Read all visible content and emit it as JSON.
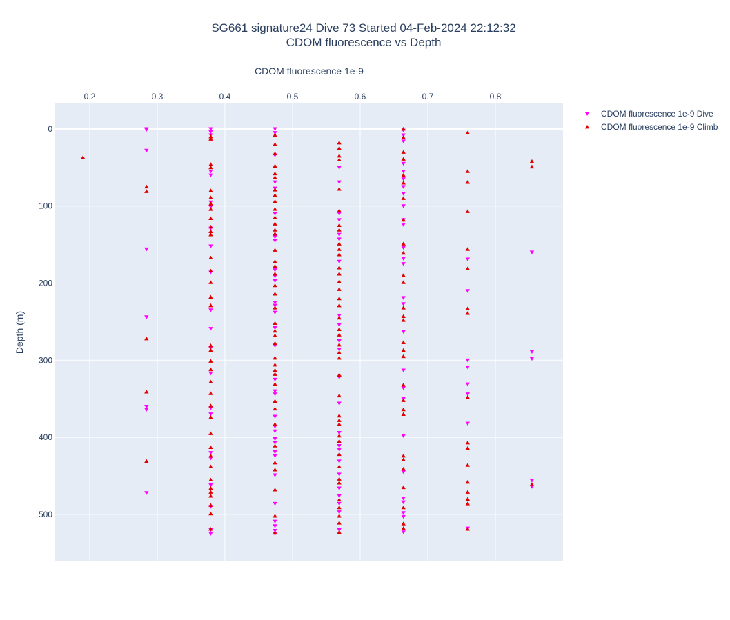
{
  "chart_data": {
    "type": "scatter",
    "title_line1": "SG661 signature24 Dive 73 Started 04-Feb-2024 22:12:32",
    "title_line2": "CDOM fluorescence vs Depth",
    "xlabel": "CDOM fluorescence 1e-9",
    "ylabel": "Depth (m)",
    "x_axis_position": "top",
    "y_reversed": true,
    "xlim": [
      0.149,
      0.9
    ],
    "ylim": [
      -33,
      560
    ],
    "xticks": [
      {
        "value": 0.2,
        "label": "0.2"
      },
      {
        "value": 0.3,
        "label": "0.3"
      },
      {
        "value": 0.4,
        "label": "0.4"
      },
      {
        "value": 0.5,
        "label": "0.5"
      },
      {
        "value": 0.6,
        "label": "0.6"
      },
      {
        "value": 0.7,
        "label": "0.7"
      },
      {
        "value": 0.8,
        "label": "0.8"
      }
    ],
    "yticks": [
      {
        "value": 0,
        "label": "0"
      },
      {
        "value": 100,
        "label": "100"
      },
      {
        "value": 200,
        "label": "200"
      },
      {
        "value": 300,
        "label": "300"
      },
      {
        "value": 400,
        "label": "400"
      },
      {
        "value": 500,
        "label": "500"
      }
    ],
    "grid": true,
    "legend_position": "top-right",
    "background": "#e5ecf6",
    "series": [
      {
        "name": "CDOM fluorescence 1e-9 Dive",
        "marker": "triangle-down",
        "color": "#ff00ff",
        "points": [
          [
            0.284,
            0
          ],
          [
            0.284,
            1
          ],
          [
            0.284,
            28
          ],
          [
            0.284,
            156
          ],
          [
            0.284,
            244
          ],
          [
            0.284,
            360
          ],
          [
            0.284,
            364
          ],
          [
            0.284,
            472
          ],
          [
            0.379,
            0
          ],
          [
            0.379,
            4
          ],
          [
            0.379,
            8
          ],
          [
            0.379,
            55
          ],
          [
            0.379,
            60
          ],
          [
            0.379,
            95
          ],
          [
            0.379,
            101
          ],
          [
            0.379,
            129
          ],
          [
            0.379,
            152
          ],
          [
            0.379,
            186
          ],
          [
            0.379,
            235
          ],
          [
            0.379,
            259
          ],
          [
            0.379,
            284
          ],
          [
            0.379,
            317
          ],
          [
            0.379,
            362
          ],
          [
            0.379,
            370
          ],
          [
            0.379,
            420
          ],
          [
            0.379,
            427
          ],
          [
            0.379,
            462
          ],
          [
            0.379,
            490
          ],
          [
            0.379,
            520
          ],
          [
            0.379,
            525
          ],
          [
            0.474,
            0
          ],
          [
            0.474,
            5
          ],
          [
            0.474,
            34
          ],
          [
            0.474,
            69
          ],
          [
            0.474,
            77
          ],
          [
            0.474,
            110
          ],
          [
            0.474,
            140
          ],
          [
            0.474,
            145
          ],
          [
            0.474,
            183
          ],
          [
            0.474,
            191
          ],
          [
            0.474,
            197
          ],
          [
            0.474,
            225
          ],
          [
            0.474,
            229
          ],
          [
            0.474,
            238
          ],
          [
            0.474,
            258
          ],
          [
            0.474,
            281
          ],
          [
            0.474,
            325
          ],
          [
            0.474,
            340
          ],
          [
            0.474,
            344
          ],
          [
            0.474,
            373
          ],
          [
            0.474,
            386
          ],
          [
            0.474,
            392
          ],
          [
            0.474,
            402
          ],
          [
            0.474,
            407
          ],
          [
            0.474,
            419
          ],
          [
            0.474,
            424
          ],
          [
            0.474,
            449
          ],
          [
            0.474,
            486
          ],
          [
            0.474,
            509
          ],
          [
            0.474,
            515
          ],
          [
            0.474,
            521
          ],
          [
            0.474,
            525
          ],
          [
            0.569,
            50
          ],
          [
            0.569,
            69
          ],
          [
            0.569,
            110
          ],
          [
            0.569,
            118
          ],
          [
            0.569,
            137
          ],
          [
            0.569,
            143
          ],
          [
            0.569,
            172
          ],
          [
            0.569,
            242
          ],
          [
            0.569,
            254
          ],
          [
            0.569,
            275
          ],
          [
            0.569,
            286
          ],
          [
            0.569,
            322
          ],
          [
            0.569,
            356
          ],
          [
            0.569,
            394
          ],
          [
            0.569,
            411
          ],
          [
            0.569,
            416
          ],
          [
            0.569,
            431
          ],
          [
            0.569,
            448
          ],
          [
            0.569,
            466
          ],
          [
            0.569,
            476
          ],
          [
            0.569,
            486
          ],
          [
            0.569,
            497
          ],
          [
            0.569,
            520
          ],
          [
            0.664,
            2
          ],
          [
            0.664,
            8
          ],
          [
            0.664,
            16
          ],
          [
            0.664,
            45
          ],
          [
            0.664,
            55
          ],
          [
            0.664,
            65
          ],
          [
            0.664,
            75
          ],
          [
            0.664,
            84
          ],
          [
            0.664,
            100
          ],
          [
            0.664,
            118
          ],
          [
            0.664,
            124
          ],
          [
            0.664,
            154
          ],
          [
            0.664,
            168
          ],
          [
            0.664,
            175
          ],
          [
            0.664,
            219
          ],
          [
            0.664,
            227
          ],
          [
            0.664,
            263
          ],
          [
            0.664,
            313
          ],
          [
            0.664,
            336
          ],
          [
            0.664,
            350
          ],
          [
            0.664,
            398
          ],
          [
            0.664,
            445
          ],
          [
            0.664,
            479
          ],
          [
            0.664,
            484
          ],
          [
            0.664,
            498
          ],
          [
            0.664,
            503
          ],
          [
            0.664,
            523
          ],
          [
            0.759,
            169
          ],
          [
            0.759,
            210
          ],
          [
            0.759,
            300
          ],
          [
            0.759,
            309
          ],
          [
            0.759,
            331
          ],
          [
            0.759,
            344
          ],
          [
            0.759,
            382
          ],
          [
            0.759,
            518
          ],
          [
            0.854,
            160
          ],
          [
            0.854,
            289
          ],
          [
            0.854,
            298
          ],
          [
            0.854,
            456
          ],
          [
            0.854,
            464
          ]
        ]
      },
      {
        "name": "CDOM fluorescence 1e-9 Climb",
        "marker": "triangle-up",
        "color": "#e00000",
        "points": [
          [
            0.19,
            37
          ],
          [
            0.284,
            75
          ],
          [
            0.284,
            81
          ],
          [
            0.284,
            272
          ],
          [
            0.284,
            341
          ],
          [
            0.284,
            431
          ],
          [
            0.379,
            10
          ],
          [
            0.379,
            13
          ],
          [
            0.379,
            46
          ],
          [
            0.379,
            50
          ],
          [
            0.379,
            80
          ],
          [
            0.379,
            89
          ],
          [
            0.379,
            97
          ],
          [
            0.379,
            104
          ],
          [
            0.379,
            116
          ],
          [
            0.379,
            127
          ],
          [
            0.379,
            133
          ],
          [
            0.379,
            137
          ],
          [
            0.379,
            167
          ],
          [
            0.379,
            184
          ],
          [
            0.379,
            199
          ],
          [
            0.379,
            218
          ],
          [
            0.379,
            229
          ],
          [
            0.379,
            281
          ],
          [
            0.379,
            287
          ],
          [
            0.379,
            301
          ],
          [
            0.379,
            312
          ],
          [
            0.379,
            328
          ],
          [
            0.379,
            343
          ],
          [
            0.379,
            359
          ],
          [
            0.379,
            374
          ],
          [
            0.379,
            395
          ],
          [
            0.379,
            413
          ],
          [
            0.379,
            424
          ],
          [
            0.379,
            438
          ],
          [
            0.379,
            455
          ],
          [
            0.379,
            466
          ],
          [
            0.379,
            471
          ],
          [
            0.379,
            476
          ],
          [
            0.379,
            488
          ],
          [
            0.379,
            499
          ],
          [
            0.379,
            519
          ],
          [
            0.474,
            8
          ],
          [
            0.474,
            20
          ],
          [
            0.474,
            32
          ],
          [
            0.474,
            48
          ],
          [
            0.474,
            58
          ],
          [
            0.474,
            63
          ],
          [
            0.474,
            79
          ],
          [
            0.474,
            86
          ],
          [
            0.474,
            94
          ],
          [
            0.474,
            104
          ],
          [
            0.474,
            115
          ],
          [
            0.474,
            123
          ],
          [
            0.474,
            131
          ],
          [
            0.474,
            136
          ],
          [
            0.474,
            157
          ],
          [
            0.474,
            172
          ],
          [
            0.474,
            178
          ],
          [
            0.474,
            188
          ],
          [
            0.474,
            203
          ],
          [
            0.474,
            214
          ],
          [
            0.474,
            232
          ],
          [
            0.474,
            252
          ],
          [
            0.474,
            262
          ],
          [
            0.474,
            268
          ],
          [
            0.474,
            278
          ],
          [
            0.474,
            297
          ],
          [
            0.474,
            306
          ],
          [
            0.474,
            313
          ],
          [
            0.474,
            318
          ],
          [
            0.474,
            331
          ],
          [
            0.474,
            353
          ],
          [
            0.474,
            363
          ],
          [
            0.474,
            383
          ],
          [
            0.474,
            411
          ],
          [
            0.474,
            433
          ],
          [
            0.474,
            442
          ],
          [
            0.474,
            468
          ],
          [
            0.474,
            502
          ],
          [
            0.474,
            524
          ],
          [
            0.569,
            18
          ],
          [
            0.569,
            25
          ],
          [
            0.569,
            35
          ],
          [
            0.569,
            40
          ],
          [
            0.569,
            78
          ],
          [
            0.569,
            106
          ],
          [
            0.569,
            125
          ],
          [
            0.569,
            131
          ],
          [
            0.569,
            149
          ],
          [
            0.569,
            156
          ],
          [
            0.569,
            163
          ],
          [
            0.569,
            180
          ],
          [
            0.569,
            188
          ],
          [
            0.569,
            198
          ],
          [
            0.569,
            208
          ],
          [
            0.569,
            220
          ],
          [
            0.569,
            229
          ],
          [
            0.569,
            245
          ],
          [
            0.569,
            260
          ],
          [
            0.569,
            267
          ],
          [
            0.569,
            280
          ],
          [
            0.569,
            290
          ],
          [
            0.569,
            297
          ],
          [
            0.569,
            319
          ],
          [
            0.569,
            346
          ],
          [
            0.569,
            372
          ],
          [
            0.569,
            378
          ],
          [
            0.569,
            383
          ],
          [
            0.569,
            398
          ],
          [
            0.569,
            405
          ],
          [
            0.569,
            422
          ],
          [
            0.569,
            438
          ],
          [
            0.569,
            454
          ],
          [
            0.569,
            459
          ],
          [
            0.569,
            481
          ],
          [
            0.569,
            491
          ],
          [
            0.569,
            502
          ],
          [
            0.569,
            511
          ],
          [
            0.569,
            523
          ],
          [
            0.664,
            0
          ],
          [
            0.664,
            11
          ],
          [
            0.664,
            30
          ],
          [
            0.664,
            39
          ],
          [
            0.664,
            60
          ],
          [
            0.664,
            70
          ],
          [
            0.664,
            90
          ],
          [
            0.664,
            118
          ],
          [
            0.664,
            149
          ],
          [
            0.664,
            161
          ],
          [
            0.664,
            190
          ],
          [
            0.664,
            199
          ],
          [
            0.664,
            232
          ],
          [
            0.664,
            243
          ],
          [
            0.664,
            248
          ],
          [
            0.664,
            277
          ],
          [
            0.664,
            287
          ],
          [
            0.664,
            295
          ],
          [
            0.664,
            332
          ],
          [
            0.664,
            352
          ],
          [
            0.664,
            364
          ],
          [
            0.664,
            370
          ],
          [
            0.664,
            424
          ],
          [
            0.664,
            429
          ],
          [
            0.664,
            441
          ],
          [
            0.664,
            465
          ],
          [
            0.664,
            491
          ],
          [
            0.664,
            512
          ],
          [
            0.664,
            518
          ],
          [
            0.759,
            5
          ],
          [
            0.759,
            55
          ],
          [
            0.759,
            69
          ],
          [
            0.759,
            107
          ],
          [
            0.759,
            156
          ],
          [
            0.759,
            181
          ],
          [
            0.759,
            233
          ],
          [
            0.759,
            239
          ],
          [
            0.759,
            348
          ],
          [
            0.759,
            407
          ],
          [
            0.759,
            414
          ],
          [
            0.759,
            436
          ],
          [
            0.759,
            458
          ],
          [
            0.759,
            471
          ],
          [
            0.759,
            480
          ],
          [
            0.759,
            486
          ],
          [
            0.759,
            519
          ],
          [
            0.854,
            42
          ],
          [
            0.854,
            49
          ],
          [
            0.854,
            461
          ]
        ]
      }
    ]
  }
}
